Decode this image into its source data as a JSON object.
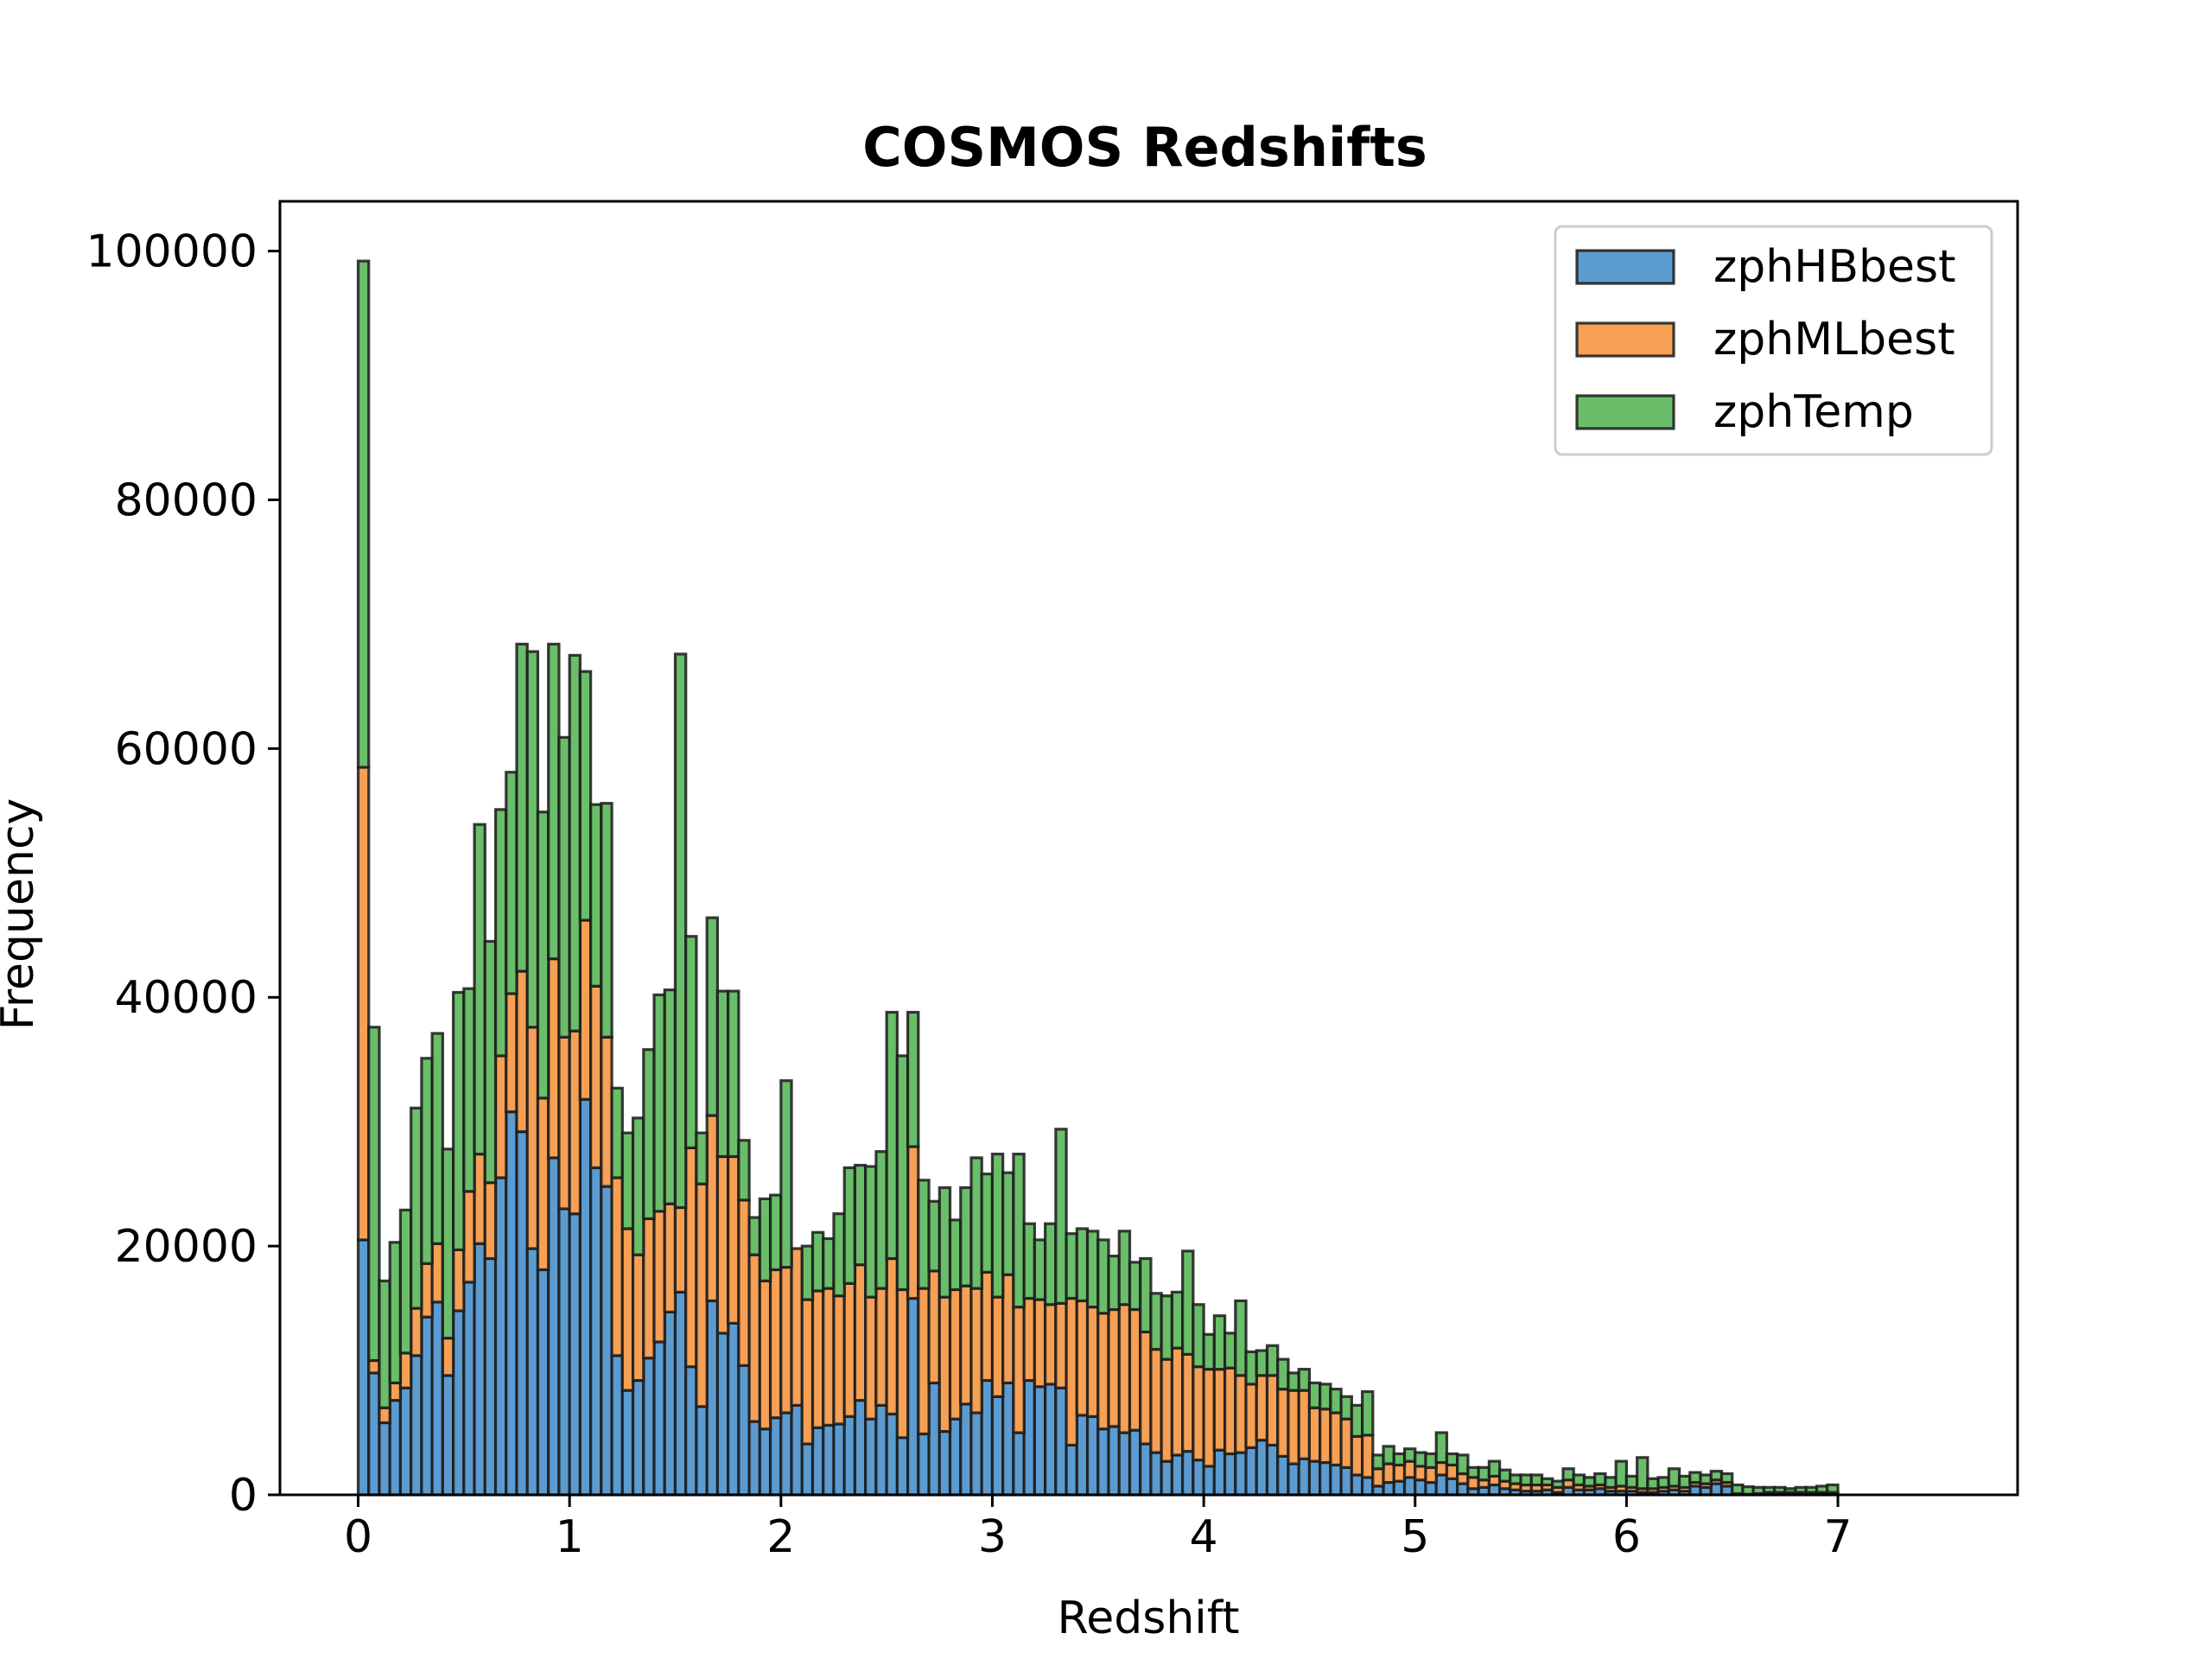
{
  "chart_data": {
    "type": "bar",
    "stacked": true,
    "title": "COSMOS Redshifts",
    "xlabel": "Redshift",
    "ylabel": "Frequency",
    "xlim": [
      -0.37,
      7.85
    ],
    "ylim": [
      0,
      104000
    ],
    "xticks": [
      0,
      1,
      2,
      3,
      4,
      5,
      6,
      7
    ],
    "yticks": [
      0,
      20000,
      40000,
      60000,
      80000,
      100000
    ],
    "xtick_labels": [
      "0",
      "1",
      "2",
      "3",
      "4",
      "5",
      "6",
      "7"
    ],
    "ytick_labels": [
      "0",
      "20000",
      "40000",
      "60000",
      "80000",
      "100000"
    ],
    "bin_start": 0.0,
    "bin_width": 0.05,
    "grid": false,
    "legend_position": "top-right",
    "series": [
      {
        "name": "zphHBbest",
        "color": "#5b9bd0",
        "values": [
          20500,
          9800,
          5800,
          7600,
          8600,
          11200,
          14300,
          15500,
          9600,
          14800,
          17100,
          20200,
          19000,
          25500,
          30800,
          29200,
          19800,
          18100,
          27100,
          23000,
          22600,
          31800,
          26300,
          24800,
          11200,
          8400,
          9200,
          11000,
          12300,
          14700,
          16300,
          10300,
          7100,
          15600,
          13000,
          13800,
          10400,
          5900,
          5300,
          6200,
          6600,
          7200,
          4100,
          5400,
          5600,
          5700,
          6300,
          7600,
          6100,
          7200,
          6500,
          4600,
          15800,
          4900,
          9000,
          5100,
          6100,
          7300,
          6600,
          9200,
          7900,
          9000,
          5000,
          9200,
          8700,
          8900,
          8600,
          4000,
          6400,
          6300,
          5300,
          5500,
          5000,
          5200,
          4100,
          3400,
          2700,
          3200,
          3500,
          2800,
          2300,
          3600,
          3300,
          3400,
          3800,
          4400,
          4000,
          3100,
          2500,
          2900,
          2700,
          2600,
          2400,
          2200,
          1600,
          1400,
          700,
          1000,
          1100,
          1400,
          1200,
          1000,
          1600,
          1300,
          900,
          500,
          600,
          800,
          500,
          400,
          300,
          300,
          400,
          200,
          600,
          400,
          400,
          500,
          300,
          300,
          300,
          200,
          200,
          300,
          400,
          300,
          700,
          600,
          900,
          700,
          100,
          50,
          100,
          200,
          200,
          200,
          200,
          200,
          200,
          200
        ],
        "tops": [
          20500,
          9800,
          5800,
          7600,
          8600,
          11200,
          14300,
          15500,
          9600,
          14800,
          17100,
          20200,
          19000,
          25500,
          30800,
          29200,
          19800,
          18100,
          27100,
          23000,
          22600,
          31800,
          26300,
          24800,
          11200,
          8400,
          9200,
          11000,
          12300,
          14700,
          16300,
          10300,
          7100,
          15600,
          13000,
          13800,
          10400,
          5900,
          5300,
          6200,
          6600,
          7200,
          4100,
          5400,
          5600,
          5700,
          6300,
          7600,
          6100,
          7200,
          6500,
          4600,
          15800,
          4900,
          9000,
          5100,
          6100,
          7300,
          6600,
          9200,
          7900,
          9000,
          5000,
          9200,
          8700,
          8900,
          8600,
          4000,
          6400,
          6300,
          5300,
          5500,
          5000,
          5200,
          4100,
          3400,
          2700,
          3200,
          3500,
          2800,
          2300,
          3600,
          3300,
          3400,
          3800,
          4400,
          4000,
          3100,
          2500,
          2900,
          2700,
          2600,
          2400,
          2200,
          1600,
          1400,
          700,
          1000,
          1100,
          1400,
          1200,
          1000,
          1600,
          1300,
          900,
          500,
          600,
          800,
          500,
          400,
          300,
          300,
          400,
          200,
          600,
          400,
          400,
          500,
          300,
          300,
          300,
          200,
          200,
          300,
          400,
          300,
          700,
          600,
          900,
          700,
          100,
          50,
          100,
          200,
          200,
          200,
          200,
          200,
          200,
          200
        ]
      },
      {
        "name": "zphMLbest",
        "color": "#f5a054",
        "values": [
          38000,
          1000,
          1200,
          1400,
          2800,
          3800,
          4300,
          4700,
          3000,
          4900,
          7300,
          7200,
          6100,
          9800,
          9500,
          12900,
          17800,
          13800,
          16000,
          13800,
          14700,
          14400,
          14600,
          12000,
          14300,
          13000,
          10100,
          11200,
          10500,
          8700,
          6800,
          17600,
          17900,
          14900,
          14200,
          13400,
          13300,
          13400,
          11900,
          11900,
          11700,
          12600,
          11600,
          11000,
          11000,
          10300,
          10700,
          10900,
          9800,
          9400,
          12500,
          11900,
          12200,
          11700,
          9000,
          10800,
          10400,
          9500,
          10000,
          8700,
          8000,
          8700,
          10100,
          6600,
          7000,
          6400,
          6800,
          11800,
          9200,
          8800,
          9300,
          9400,
          10300,
          9700,
          9000,
          8300,
          8200,
          8600,
          7800,
          7500,
          7800,
          6500,
          6900,
          6200,
          5100,
          5200,
          5600,
          5400,
          5900,
          5500,
          4300,
          4300,
          4200,
          3900,
          3100,
          3400,
          1400,
          1500,
          1300,
          1300,
          1100,
          1200,
          1000,
          1100,
          800,
          900,
          600,
          700,
          600,
          500,
          500,
          500,
          400,
          400,
          600,
          400,
          300,
          300,
          300,
          400,
          300,
          300,
          300,
          300,
          300,
          300,
          300,
          300,
          300,
          300,
          0,
          0,
          0,
          0,
          0,
          0,
          0,
          0,
          0,
          0
        ],
        "tops": [
          58500,
          10800,
          7000,
          9000,
          11400,
          15000,
          18600,
          20200,
          12600,
          19700,
          24400,
          27400,
          25100,
          35300,
          40300,
          42100,
          37600,
          31900,
          43100,
          36800,
          37300,
          46200,
          40900,
          36800,
          25500,
          21400,
          19300,
          22200,
          22800,
          23400,
          23100,
          27900,
          25000,
          30500,
          27200,
          27200,
          23700,
          19300,
          17200,
          18100,
          18300,
          19800,
          15700,
          16400,
          16600,
          16000,
          17000,
          18500,
          15900,
          16600,
          19000,
          16500,
          28000,
          16600,
          18000,
          15900,
          16500,
          16800,
          16600,
          17900,
          15900,
          17700,
          15100,
          15800,
          15700,
          15300,
          15400,
          15800,
          15600,
          15100,
          14600,
          14900,
          15300,
          14900,
          13100,
          11700,
          10900,
          11800,
          11300,
          10300,
          10100,
          10100,
          10200,
          9600,
          8900,
          9600,
          9600,
          8500,
          8400,
          8400,
          7000,
          6900,
          6600,
          6100,
          4700,
          4800,
          2100,
          2500,
          2400,
          2700,
          2300,
          2200,
          2600,
          2400,
          1700,
          1400,
          1200,
          1500,
          1100,
          900,
          800,
          800,
          800,
          600,
          1200,
          800,
          700,
          800,
          600,
          700,
          600,
          500,
          500,
          600,
          700,
          600,
          1000,
          900,
          1200,
          1000,
          100,
          50,
          100,
          200,
          200,
          200,
          200,
          200,
          200,
          200
        ]
      },
      {
        "name": "zphTemp",
        "color": "#6abe6a",
        "values": [
          40700,
          26800,
          10200,
          11300,
          11500,
          16100,
          16500,
          16900,
          15200,
          20700,
          16300,
          26500,
          19400,
          19800,
          17800,
          26300,
          30200,
          23000,
          25300,
          24100,
          30200,
          20000,
          14600,
          18800,
          7200,
          7700,
          11000,
          13600,
          17400,
          17200,
          44500,
          17000,
          4100,
          15900,
          13300,
          13300,
          4800,
          3000,
          6600,
          6000,
          15000,
          0,
          4300,
          4700,
          4000,
          6600,
          9300,
          8000,
          10500,
          11000,
          19800,
          18800,
          10800,
          8700,
          5600,
          8800,
          5600,
          7900,
          10500,
          7900,
          11500,
          8200,
          12300,
          6000,
          4800,
          6500,
          14000,
          5200,
          5800,
          6100,
          5900,
          4300,
          5900,
          3800,
          5900,
          4500,
          5100,
          4500,
          8300,
          5000,
          2800,
          4300,
          2800,
          6000,
          2600,
          2000,
          2400,
          2400,
          1400,
          1700,
          2000,
          2000,
          1900,
          1800,
          2500,
          3500,
          1100,
          1400,
          900,
          1000,
          1100,
          1100,
          2400,
          900,
          1500,
          800,
          1000,
          1200,
          900,
          700,
          800,
          800,
          500,
          500,
          900,
          800,
          700,
          900,
          800,
          2000,
          900,
          2500,
          800,
          800,
          1400,
          900,
          800,
          700,
          700,
          700,
          700,
          600,
          500,
          400,
          400,
          300,
          400,
          400,
          500,
          600
        ],
        "tops": [
          99200,
          37600,
          17200,
          20300,
          22900,
          31100,
          35100,
          37100,
          27800,
          40400,
          40700,
          53900,
          44500,
          55100,
          58100,
          68400,
          67800,
          54900,
          68400,
          60900,
          67500,
          66200,
          55500,
          55600,
          32700,
          29100,
          30300,
          35800,
          40200,
          40600,
          67600,
          44900,
          29100,
          46400,
          40500,
          40500,
          28500,
          22300,
          23800,
          24100,
          33300,
          19800,
          20000,
          21100,
          20600,
          22600,
          26300,
          26500,
          26400,
          27600,
          38800,
          35300,
          38800,
          25300,
          23600,
          24700,
          22100,
          24700,
          27100,
          25800,
          27400,
          25900,
          27400,
          21800,
          20500,
          21800,
          29400,
          21000,
          21400,
          21200,
          20500,
          19200,
          21200,
          18700,
          19000,
          16200,
          16000,
          16300,
          19600,
          15300,
          12900,
          14400,
          13000,
          15600,
          11500,
          11600,
          12000,
          10900,
          9800,
          10100,
          9000,
          8900,
          8500,
          7900,
          7200,
          8300,
          3200,
          3900,
          3300,
          3700,
          3400,
          3300,
          5000,
          3300,
          3200,
          2200,
          2200,
          2700,
          2000,
          1600,
          1600,
          1600,
          1300,
          1100,
          2100,
          1600,
          1400,
          1700,
          1400,
          2700,
          1500,
          3000,
          1300,
          1400,
          2100,
          1500,
          1800,
          1600,
          1900,
          1700,
          800,
          650,
          600,
          600,
          600,
          500,
          600,
          600,
          700,
          800
        ]
      }
    ]
  }
}
